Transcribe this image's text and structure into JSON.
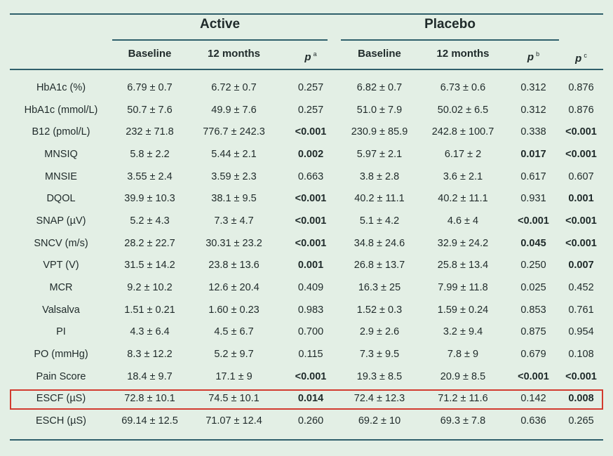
{
  "groups": {
    "active": "Active",
    "placebo": "Placebo"
  },
  "columns": {
    "active_baseline": "Baseline",
    "active_12m": "12 months",
    "p_a": "p",
    "p_a_sup": "a",
    "placebo_baseline": "Baseline",
    "placebo_12m": "12 months",
    "p_b": "p",
    "p_b_sup": "b",
    "p_c": "p",
    "p_c_sup": "c"
  },
  "rows": [
    {
      "label": "HbA1c (%)",
      "a0": "6.79 ± 0.7",
      "a12": "6.72 ± 0.7",
      "pa": "0.257",
      "pa_bold": false,
      "b0": "6.82 ± 0.7",
      "b12": "6.73 ± 0.6",
      "pb": "0.312",
      "pb_bold": false,
      "pc": "0.876",
      "pc_bold": false
    },
    {
      "label": "HbA1c (mmol/L)",
      "a0": "50.7 ± 7.6",
      "a12": "49.9 ± 7.6",
      "pa": "0.257",
      "pa_bold": false,
      "b0": "51.0 ± 7.9",
      "b12": "50.02 ± 6.5",
      "pb": "0.312",
      "pb_bold": false,
      "pc": "0.876",
      "pc_bold": false
    },
    {
      "label": "B12 (pmol/L)",
      "a0": "232 ± 71.8",
      "a12": "776.7 ± 242.3",
      "pa": "<0.001",
      "pa_bold": true,
      "b0": "230.9 ± 85.9",
      "b12": "242.8 ± 100.7",
      "pb": "0.338",
      "pb_bold": false,
      "pc": "<0.001",
      "pc_bold": true
    },
    {
      "label": "MNSIQ",
      "a0": "5.8 ± 2.2",
      "a12": "5.44 ± 2.1",
      "pa": "0.002",
      "pa_bold": true,
      "b0": "5.97 ± 2.1",
      "b12": "6.17 ± 2",
      "pb": "0.017",
      "pb_bold": true,
      "pc": "<0.001",
      "pc_bold": true
    },
    {
      "label": "MNSIE",
      "a0": "3.55 ± 2.4",
      "a12": "3.59 ± 2.3",
      "pa": "0.663",
      "pa_bold": false,
      "b0": "3.8 ± 2.8",
      "b12": "3.6 ± 2.1",
      "pb": "0.617",
      "pb_bold": false,
      "pc": "0.607",
      "pc_bold": false
    },
    {
      "label": "DQOL",
      "a0": "39.9 ± 10.3",
      "a12": "38.1 ± 9.5",
      "pa": "<0.001",
      "pa_bold": true,
      "b0": "40.2 ± 11.1",
      "b12": "40.2 ± 11.1",
      "pb": "0.931",
      "pb_bold": false,
      "pc": "0.001",
      "pc_bold": true
    },
    {
      "label": "SNAP (µV)",
      "a0": "5.2 ± 4.3",
      "a12": "7.3 ± 4.7",
      "pa": "<0.001",
      "pa_bold": true,
      "b0": "5.1 ± 4.2",
      "b12": "4.6 ± 4",
      "pb": "<0.001",
      "pb_bold": true,
      "pc": "<0.001",
      "pc_bold": true
    },
    {
      "label": "SNCV (m/s)",
      "a0": "28.2 ± 22.7",
      "a12": "30.31 ± 23.2",
      "pa": "<0.001",
      "pa_bold": true,
      "b0": "34.8 ± 24.6",
      "b12": "32.9 ± 24.2",
      "pb": "0.045",
      "pb_bold": true,
      "pc": "<0.001",
      "pc_bold": true
    },
    {
      "label": "VPT (V)",
      "a0": "31.5 ± 14.2",
      "a12": "23.8 ± 13.6",
      "pa": "0.001",
      "pa_bold": true,
      "b0": "26.8 ± 13.7",
      "b12": "25.8 ± 13.4",
      "pb": "0.250",
      "pb_bold": false,
      "pc": "0.007",
      "pc_bold": true
    },
    {
      "label": "MCR",
      "a0": "9.2 ± 10.2",
      "a12": "12.6 ± 20.4",
      "pa": "0.409",
      "pa_bold": false,
      "b0": "16.3 ± 25",
      "b12": "7.99 ± 11.8",
      "pb": "0.025",
      "pb_bold": false,
      "pc": "0.452",
      "pc_bold": false
    },
    {
      "label": "Valsalva",
      "a0": "1.51 ± 0.21",
      "a12": "1.60 ± 0.23",
      "pa": "0.983",
      "pa_bold": false,
      "b0": "1.52 ± 0.3",
      "b12": "1.59 ± 0.24",
      "pb": "0.853",
      "pb_bold": false,
      "pc": "0.761",
      "pc_bold": false
    },
    {
      "label": "PI",
      "a0": "4.3 ± 6.4",
      "a12": "4.5 ± 6.7",
      "pa": "0.700",
      "pa_bold": false,
      "b0": "2.9 ± 2.6",
      "b12": "3.2 ± 9.4",
      "pb": "0.875",
      "pb_bold": false,
      "pc": "0.954",
      "pc_bold": false
    },
    {
      "label": "PO (mmHg)",
      "a0": "8.3 ± 12.2",
      "a12": "5.2 ± 9.7",
      "pa": "0.115",
      "pa_bold": false,
      "b0": "7.3 ± 9.5",
      "b12": "7.8 ± 9",
      "pb": "0.679",
      "pb_bold": false,
      "pc": "0.108",
      "pc_bold": false
    },
    {
      "label": "Pain Score",
      "a0": "18.4 ± 9.7",
      "a12": "17.1 ± 9",
      "pa": "<0.001",
      "pa_bold": true,
      "b0": "19.3 ± 8.5",
      "b12": "20.9 ± 8.5",
      "pb": "<0.001",
      "pb_bold": true,
      "pc": "<0.001",
      "pc_bold": true
    },
    {
      "label": "ESCF (µS)",
      "a0": "72.8 ± 10.1",
      "a12": "74.5 ± 10.1",
      "pa": "0.014",
      "pa_bold": true,
      "b0": "72.4 ± 12.3",
      "b12": "71.2 ± 11.6",
      "pb": "0.142",
      "pb_bold": false,
      "pc": "0.008",
      "pc_bold": true
    },
    {
      "label": "ESCH (µS)",
      "a0": "69.14 ± 12.5",
      "a12": "71.07 ± 12.4",
      "pa": "0.260",
      "pa_bold": false,
      "b0": "69.2 ± 10",
      "b12": "69.3 ± 7.8",
      "pb": "0.636",
      "pb_bold": false,
      "pc": "0.265",
      "pc_bold": false
    }
  ],
  "highlighted_row": "ESCF (µS)",
  "colors": {
    "background": "#e3efe5",
    "rule": "#2f5f6b",
    "highlight": "#d23b2f",
    "text": "#1f2a2a"
  }
}
